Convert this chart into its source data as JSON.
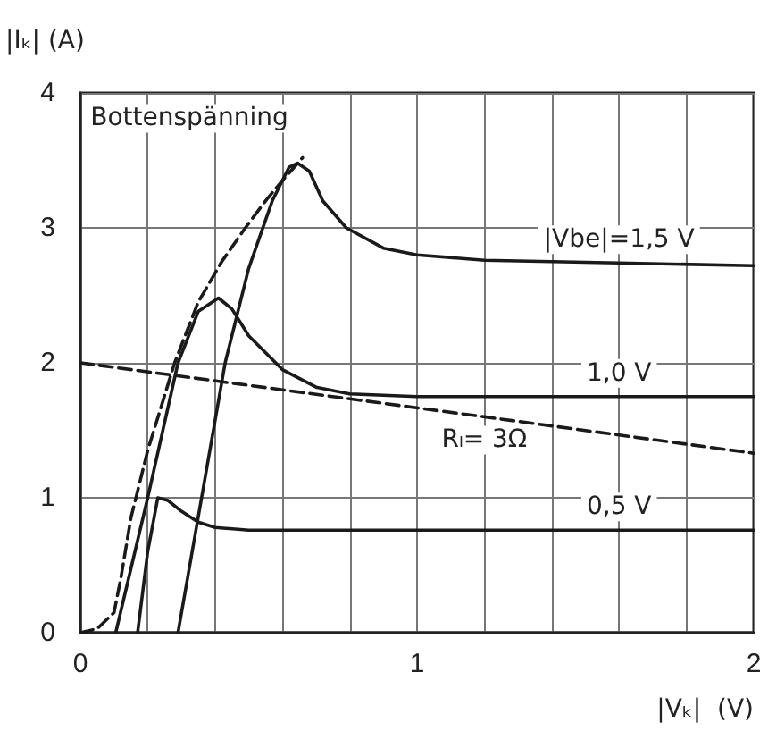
{
  "chart_data": {
    "type": "line",
    "xlabel": "|Vₖ|  (V)",
    "ylabel": "|Iₖ| (A)",
    "xlim": [
      0,
      2
    ],
    "xticks": [
      0,
      {
        "value": 0.2,
        "label": null
      },
      {
        "value": 0.4,
        "label": null
      },
      {
        "value": 0.6,
        "label": null
      },
      {
        "value": 0.8,
        "label": null
      },
      1,
      {
        "value": 1.2,
        "label": null
      },
      {
        "value": 1.4,
        "label": null
      },
      {
        "value": 1.6,
        "label": null
      },
      {
        "value": 1.8,
        "label": null
      },
      2
    ],
    "ylim": [
      0,
      4
    ],
    "yticks": [
      0,
      1,
      2,
      3,
      4
    ],
    "grid": true,
    "legend": false,
    "marker": "none",
    "series": [
      {
        "name": "|Vbe|=1,5 V",
        "color": "#1a1a1a",
        "line_style": "solid",
        "x": [
          0.29,
          0.36,
          0.43,
          0.5,
          0.57,
          0.62,
          0.645,
          0.68,
          0.72,
          0.79,
          0.9,
          1.0,
          1.2,
          1.6,
          2.0
        ],
        "values": [
          0,
          1.0,
          2.0,
          2.7,
          3.2,
          3.45,
          3.48,
          3.42,
          3.2,
          3.0,
          2.85,
          2.8,
          2.76,
          2.74,
          2.72
        ]
      },
      {
        "name": "1,0 V",
        "color": "#1a1a1a",
        "line_style": "solid",
        "x": [
          0.105,
          0.2,
          0.29,
          0.35,
          0.41,
          0.45,
          0.5,
          0.6,
          0.7,
          0.8,
          1.0,
          1.6,
          2.0
        ],
        "values": [
          0,
          1.0,
          2.0,
          2.38,
          2.48,
          2.4,
          2.2,
          1.95,
          1.82,
          1.77,
          1.75,
          1.75,
          1.75
        ]
      },
      {
        "name": "0,5 V",
        "color": "#1a1a1a",
        "line_style": "solid",
        "x": [
          0.17,
          0.2,
          0.23,
          0.26,
          0.3,
          0.35,
          0.4,
          0.5,
          1.2,
          1.6,
          2.0
        ],
        "values": [
          0,
          0.6,
          1.0,
          0.98,
          0.9,
          0.82,
          0.78,
          0.76,
          0.76,
          0.76,
          0.76
        ]
      },
      {
        "name": "Rₗ= 3Ω",
        "color": "#1a1a1a",
        "line_style": "dashed",
        "x": [
          0,
          1.2,
          2
        ],
        "values": [
          2,
          1.6,
          1.33
        ]
      },
      {
        "name": "Bottenspänning",
        "color": "#1a1a1a",
        "line_style": "dashed",
        "x": [
          0,
          0.05,
          0.1,
          0.12,
          0.15,
          0.2,
          0.28,
          0.35,
          0.42,
          0.49,
          0.55,
          0.6,
          0.66
        ],
        "values": [
          0,
          0.03,
          0.15,
          0.4,
          0.85,
          1.35,
          2.0,
          2.45,
          2.75,
          3.0,
          3.2,
          3.35,
          3.52
        ]
      }
    ]
  }
}
